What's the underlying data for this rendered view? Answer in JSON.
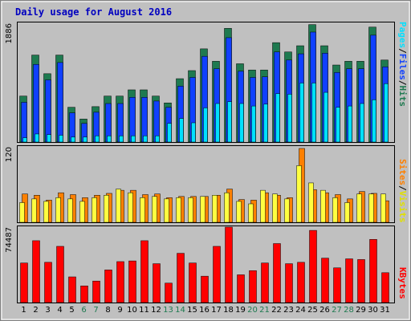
{
  "title": "Daily usage for August 2016",
  "colors": {
    "background": "#c0c0c0",
    "hits": "#1e7a50",
    "files": "#1040ff",
    "pages": "#00e0ff",
    "visits": "#ffff40",
    "sites": "#ff8000",
    "kbytes": "#ff0000",
    "title": "#0000c0",
    "weekend_label": "#1e7a50"
  },
  "labels": {
    "pages": "Pages",
    "files": "Files",
    "hits": "Hits",
    "sites": "Sites",
    "visits": "Visits",
    "kbytes": "KBytes",
    "sep": "/"
  },
  "chart_data": [
    {
      "type": "bar",
      "title": "Daily usage for August 2016",
      "ymax_label": "1886",
      "ylim": [
        0,
        1886
      ],
      "categories": [
        "1",
        "2",
        "3",
        "4",
        "5",
        "6",
        "7",
        "8",
        "9",
        "10",
        "11",
        "12",
        "13",
        "14",
        "15",
        "16",
        "17",
        "18",
        "19",
        "20",
        "21",
        "22",
        "23",
        "24",
        "25",
        "26",
        "27",
        "28",
        "29",
        "30",
        "31"
      ],
      "weekend_days": [
        "6",
        "7",
        "13",
        "14",
        "20",
        "21",
        "27",
        "28"
      ],
      "series": [
        {
          "name": "Hits",
          "values": [
            740,
            1400,
            1100,
            1400,
            560,
            370,
            570,
            740,
            740,
            840,
            840,
            740,
            630,
            1020,
            1150,
            1500,
            1300,
            1830,
            1260,
            1160,
            1160,
            1600,
            1450,
            1550,
            1890,
            1550,
            1240,
            1300,
            1300,
            1850,
            1320
          ]
        },
        {
          "name": "Files",
          "values": [
            640,
            1250,
            1000,
            1280,
            470,
            300,
            480,
            620,
            620,
            720,
            720,
            660,
            560,
            900,
            1040,
            1380,
            1180,
            1680,
            1140,
            1040,
            1050,
            1450,
            1320,
            1420,
            1770,
            1430,
            1120,
            1180,
            1180,
            1720,
            1210
          ]
        },
        {
          "name": "Pages",
          "values": [
            70,
            130,
            120,
            110,
            80,
            80,
            100,
            100,
            100,
            100,
            100,
            100,
            300,
            380,
            310,
            550,
            620,
            650,
            620,
            580,
            610,
            780,
            770,
            950,
            950,
            800,
            560,
            580,
            620,
            680,
            940
          ]
        }
      ]
    },
    {
      "type": "bar",
      "ymax_label": "120",
      "ylim": [
        0,
        120
      ],
      "series": [
        {
          "name": "Sites",
          "values": [
            46,
            44,
            36,
            48,
            45,
            40,
            44,
            47,
            52,
            52,
            45,
            46,
            40,
            42,
            42,
            42,
            44,
            54,
            37,
            36,
            48,
            44,
            40,
            120,
            53,
            48,
            45,
            38,
            50,
            47,
            35
          ]
        },
        {
          "name": "Visits",
          "values": [
            32,
            38,
            34,
            40,
            38,
            34,
            40,
            44,
            54,
            48,
            40,
            42,
            38,
            40,
            40,
            42,
            44,
            48,
            34,
            30,
            52,
            46,
            38,
            92,
            64,
            52,
            40,
            32,
            46,
            46,
            46
          ]
        }
      ]
    },
    {
      "type": "bar",
      "ymax_label": "74487",
      "ylim": [
        0,
        74487
      ],
      "series": [
        {
          "name": "KBytes",
          "values": [
            39900,
            62400,
            40600,
            56700,
            25900,
            16800,
            21700,
            32900,
            41300,
            42000,
            62400,
            39200,
            19600,
            49700,
            39900,
            26600,
            56700,
            77000,
            28000,
            32200,
            39900,
            59500,
            39200,
            40600,
            72800,
            44800,
            35000,
            44100,
            43400,
            63700,
            30100
          ]
        }
      ]
    }
  ]
}
